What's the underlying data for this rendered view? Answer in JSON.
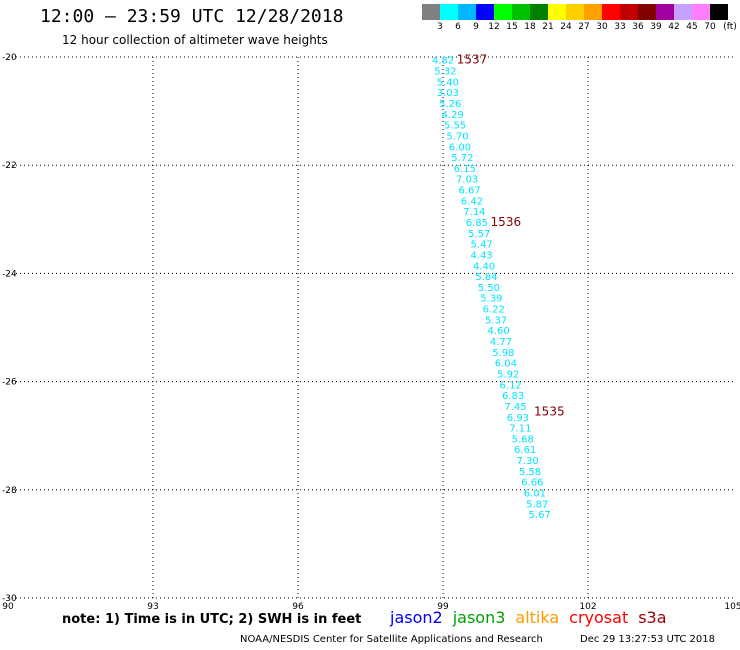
{
  "header": {
    "title": "12:00 — 23:59 UTC 12/28/2018",
    "subtitle": "12 hour collection of altimeter wave heights"
  },
  "color_scale": {
    "unit": "(ft)",
    "labels": [
      "3",
      "6",
      "9",
      "12",
      "15",
      "18",
      "21",
      "24",
      "27",
      "30",
      "33",
      "36",
      "39",
      "42",
      "45",
      "70"
    ],
    "colors": [
      "#808080",
      "#00ffff",
      "#00b8ff",
      "#0000ff",
      "#00ff00",
      "#00c000",
      "#008000",
      "#ffff00",
      "#ffd000",
      "#ffa000",
      "#ff0000",
      "#c00000",
      "#800000",
      "#a000a0",
      "#c8a0ff",
      "#ff80ff",
      "#000000"
    ]
  },
  "map": {
    "lon_range": [
      90,
      105
    ],
    "lat_range": [
      -30,
      -20
    ],
    "lon_ticks": [
      "90",
      "93",
      "96",
      "99",
      "102",
      "105"
    ],
    "lat_ticks": [
      "-20",
      "-22",
      "-24",
      "-26",
      "-28",
      "-30"
    ],
    "grid": "dotted",
    "wave_color": "#00e5ff",
    "track_label_color": "#800000",
    "track_labels": [
      {
        "text": "1537",
        "lon": 99.6,
        "lat": -20.05
      },
      {
        "text": "1536",
        "lon": 100.3,
        "lat": -23.05
      },
      {
        "text": "1535",
        "lon": 101.2,
        "lat": -26.55
      }
    ],
    "points": [
      {
        "v": "4.82",
        "lon": 99.0,
        "lat": -20.05
      },
      {
        "v": "5.32",
        "lon": 99.05,
        "lat": -20.25
      },
      {
        "v": "5.40",
        "lon": 99.1,
        "lat": -20.45
      },
      {
        "v": "3.03",
        "lon": 99.1,
        "lat": -20.65
      },
      {
        "v": "5.26",
        "lon": 99.15,
        "lat": -20.85
      },
      {
        "v": "4.29",
        "lon": 99.2,
        "lat": -21.05
      },
      {
        "v": "5.55",
        "lon": 99.25,
        "lat": -21.25
      },
      {
        "v": "5.70",
        "lon": 99.3,
        "lat": -21.45
      },
      {
        "v": "6.00",
        "lon": 99.35,
        "lat": -21.65
      },
      {
        "v": "5.72",
        "lon": 99.4,
        "lat": -21.85
      },
      {
        "v": "6.15",
        "lon": 99.45,
        "lat": -22.05
      },
      {
        "v": "7.03",
        "lon": 99.5,
        "lat": -22.25
      },
      {
        "v": "6.67",
        "lon": 99.55,
        "lat": -22.45
      },
      {
        "v": "6.42",
        "lon": 99.6,
        "lat": -22.65
      },
      {
        "v": "7.14",
        "lon": 99.65,
        "lat": -22.85
      },
      {
        "v": "6.85",
        "lon": 99.7,
        "lat": -23.05
      },
      {
        "v": "5.57",
        "lon": 99.75,
        "lat": -23.25
      },
      {
        "v": "5.47",
        "lon": 99.8,
        "lat": -23.45
      },
      {
        "v": "4.43",
        "lon": 99.8,
        "lat": -23.65
      },
      {
        "v": "4.40",
        "lon": 99.85,
        "lat": -23.85
      },
      {
        "v": "5.84",
        "lon": 99.9,
        "lat": -24.05
      },
      {
        "v": "5.50",
        "lon": 99.95,
        "lat": -24.25
      },
      {
        "v": "5.39",
        "lon": 100.0,
        "lat": -24.45
      },
      {
        "v": "6.22",
        "lon": 100.05,
        "lat": -24.65
      },
      {
        "v": "5.37",
        "lon": 100.1,
        "lat": -24.85
      },
      {
        "v": "4.60",
        "lon": 100.15,
        "lat": -25.05
      },
      {
        "v": "4.77",
        "lon": 100.2,
        "lat": -25.25
      },
      {
        "v": "5.98",
        "lon": 100.25,
        "lat": -25.45
      },
      {
        "v": "6.04",
        "lon": 100.3,
        "lat": -25.65
      },
      {
        "v": "5.92",
        "lon": 100.35,
        "lat": -25.85
      },
      {
        "v": "6.12",
        "lon": 100.4,
        "lat": -26.05
      },
      {
        "v": "6.83",
        "lon": 100.45,
        "lat": -26.25
      },
      {
        "v": "7.45",
        "lon": 100.5,
        "lat": -26.45
      },
      {
        "v": "6.93",
        "lon": 100.55,
        "lat": -26.65
      },
      {
        "v": "7.11",
        "lon": 100.6,
        "lat": -26.85
      },
      {
        "v": "5.68",
        "lon": 100.65,
        "lat": -27.05
      },
      {
        "v": "6.61",
        "lon": 100.7,
        "lat": -27.25
      },
      {
        "v": "7.30",
        "lon": 100.75,
        "lat": -27.45
      },
      {
        "v": "5.58",
        "lon": 100.8,
        "lat": -27.65
      },
      {
        "v": "6.66",
        "lon": 100.85,
        "lat": -27.85
      },
      {
        "v": "6.01",
        "lon": 100.9,
        "lat": -28.05
      },
      {
        "v": "5.87",
        "lon": 100.95,
        "lat": -28.25
      },
      {
        "v": "5.67",
        "lon": 101.0,
        "lat": -28.45
      }
    ]
  },
  "footer": {
    "note": "note: 1) Time is in UTC; 2) SWH is in feet",
    "satellites": [
      {
        "name": "jason2",
        "color": "#0000ff"
      },
      {
        "name": "jason3",
        "color": "#00a000"
      },
      {
        "name": "altika",
        "color": "#ff9900"
      },
      {
        "name": "cryosat",
        "color": "#ff0000"
      },
      {
        "name": "s3a",
        "color": "#990000"
      }
    ],
    "credit": "NOAA/NESDIS Center for Satellite Applications and Research",
    "timestamp": "Dec 29 13:27:53 UTC 2018"
  }
}
